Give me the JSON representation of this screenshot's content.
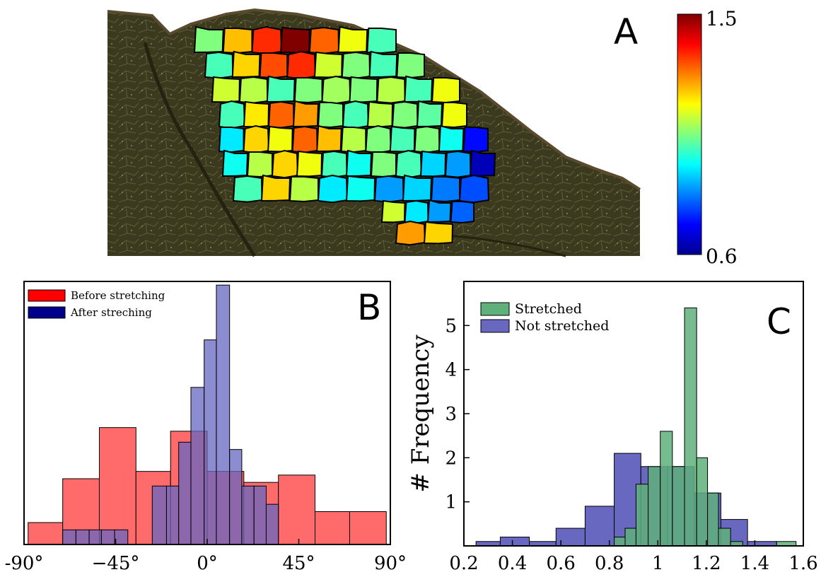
{
  "colors": {
    "leaf_background": "#3b3a1f",
    "before_stretching": "#ff6b6b",
    "after_stretching": "#6565c0",
    "overlap": "#6a2a86",
    "stretched": "#5fb07a",
    "not_stretched": "#6868c0",
    "axis": "#000000"
  },
  "panel_a": {
    "label": "A",
    "image_description": "leaf tissue photo with colored cell polygons",
    "colorbar": {
      "max_label": "1.5",
      "min_label": "0.6",
      "min": 0.6,
      "max": 1.5,
      "colormap": "jet"
    }
  },
  "chart_data": [
    {
      "panel": "B",
      "type": "bar",
      "label": "B",
      "xlabel": "",
      "ylabel": "",
      "xlim": [
        -90,
        90
      ],
      "ylim": [
        0,
        7.2
      ],
      "grid": false,
      "legend_position": "top-left",
      "x_ticks": [
        -90,
        -45,
        0,
        45,
        90
      ],
      "x_tick_labels": [
        "-90°",
        "−45°",
        "0°",
        "45°",
        "90°"
      ],
      "series": [
        {
          "name": "Before stretching",
          "color": "#ff6b6b",
          "bins": [
            {
              "x0": -88,
              "x1": -71,
              "count": 0.6
            },
            {
              "x0": -71,
              "x1": -53,
              "count": 1.8
            },
            {
              "x0": -53,
              "x1": -35,
              "count": 3.2
            },
            {
              "x0": -35,
              "x1": -18,
              "count": 2.0
            },
            {
              "x0": -18,
              "x1": 0,
              "count": 3.1
            },
            {
              "x0": 0,
              "x1": 18,
              "count": 2.0
            },
            {
              "x0": 18,
              "x1": 35,
              "count": 1.7
            },
            {
              "x0": 35,
              "x1": 53,
              "count": 1.9
            },
            {
              "x0": 53,
              "x1": 70,
              "count": 0.9
            },
            {
              "x0": 70,
              "x1": 88,
              "count": 0.9
            }
          ]
        },
        {
          "name": "After streching",
          "color": "#6565c0",
          "bins": [
            {
              "x0": -71,
              "x1": -64.5,
              "count": 0.4
            },
            {
              "x0": -64.5,
              "x1": -58,
              "count": 0.4
            },
            {
              "x0": -58,
              "x1": -52,
              "count": 0.4
            },
            {
              "x0": -52,
              "x1": -45.5,
              "count": 0.4
            },
            {
              "x0": -45.5,
              "x1": -39,
              "count": 0.4
            },
            {
              "x0": -27,
              "x1": -20,
              "count": 1.6
            },
            {
              "x0": -20,
              "x1": -14,
              "count": 1.6
            },
            {
              "x0": -14,
              "x1": -8,
              "count": 2.8
            },
            {
              "x0": -8,
              "x1": -1.5,
              "count": 4.3
            },
            {
              "x0": -1.5,
              "x1": 4.5,
              "count": 5.6
            },
            {
              "x0": 4.5,
              "x1": 11,
              "count": 7.1
            },
            {
              "x0": 11,
              "x1": 17,
              "count": 2.6
            },
            {
              "x0": 17,
              "x1": 23,
              "count": 1.6
            },
            {
              "x0": 23,
              "x1": 29,
              "count": 1.6
            },
            {
              "x0": 29,
              "x1": 35,
              "count": 1.1
            }
          ]
        }
      ]
    },
    {
      "panel": "C",
      "type": "bar",
      "label": "C",
      "xlabel": "",
      "ylabel": "# Frequency",
      "xlim": [
        0.2,
        1.6
      ],
      "ylim": [
        0,
        6
      ],
      "grid": false,
      "legend_position": "top-left",
      "x_ticks": [
        0.2,
        0.4,
        0.6,
        0.8,
        1.0,
        1.2,
        1.4,
        1.6
      ],
      "x_tick_labels": [
        "0.2",
        "0.4",
        "0.6",
        "0.8",
        "1",
        "1.2",
        "1.4",
        "1.6"
      ],
      "y_ticks": [
        1,
        2,
        3,
        4,
        5
      ],
      "y_tick_labels": [
        "1",
        "2",
        "3",
        "4",
        "5"
      ],
      "series": [
        {
          "name": "Not stretched",
          "color": "#6868c0",
          "bins": [
            {
              "x0": 0.25,
              "x1": 0.35,
              "count": 0.1
            },
            {
              "x0": 0.35,
              "x1": 0.47,
              "count": 0.2
            },
            {
              "x0": 0.47,
              "x1": 0.58,
              "count": 0.1
            },
            {
              "x0": 0.58,
              "x1": 0.7,
              "count": 0.4
            },
            {
              "x0": 0.7,
              "x1": 0.82,
              "count": 0.9
            },
            {
              "x0": 0.82,
              "x1": 0.93,
              "count": 2.1
            },
            {
              "x0": 0.93,
              "x1": 1.04,
              "count": 1.8
            },
            {
              "x0": 1.04,
              "x1": 1.15,
              "count": 1.8
            },
            {
              "x0": 1.15,
              "x1": 1.26,
              "count": 1.2
            },
            {
              "x0": 1.26,
              "x1": 1.37,
              "count": 0.6
            },
            {
              "x0": 1.37,
              "x1": 1.49,
              "count": 0.1
            }
          ]
        },
        {
          "name": "Stretched",
          "color": "#5fb07a",
          "bins": [
            {
              "x0": 0.82,
              "x1": 0.865,
              "count": 0.2
            },
            {
              "x0": 0.865,
              "x1": 0.91,
              "count": 0.4
            },
            {
              "x0": 0.91,
              "x1": 0.96,
              "count": 1.4
            },
            {
              "x0": 0.96,
              "x1": 1.01,
              "count": 1.8
            },
            {
              "x0": 1.01,
              "x1": 1.06,
              "count": 2.6
            },
            {
              "x0": 1.06,
              "x1": 1.11,
              "count": 1.8
            },
            {
              "x0": 1.11,
              "x1": 1.16,
              "count": 5.4
            },
            {
              "x0": 1.16,
              "x1": 1.205,
              "count": 2.0
            },
            {
              "x0": 1.205,
              "x1": 1.25,
              "count": 1.2
            },
            {
              "x0": 1.25,
              "x1": 1.3,
              "count": 0.4
            },
            {
              "x0": 1.3,
              "x1": 1.35,
              "count": 0.1
            },
            {
              "x0": 1.49,
              "x1": 1.57,
              "count": 0.1
            }
          ]
        }
      ]
    }
  ]
}
